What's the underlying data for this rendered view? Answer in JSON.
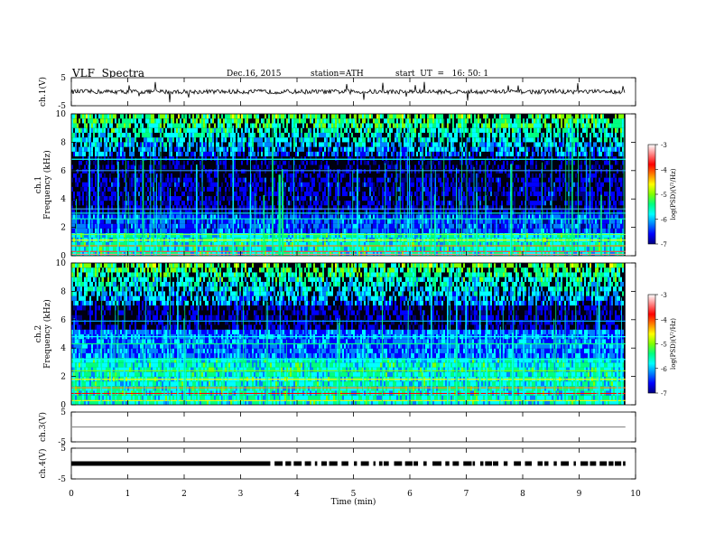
{
  "header": {
    "title": "VLF  Spectra",
    "date": "Dec.16, 2015",
    "station": "station=ATH",
    "start": "start  UT  =   16: 50: 1"
  },
  "colorbar": {
    "label": "log(PSD)(V²/Hz)",
    "ticks": [
      "-3",
      "-4",
      "-5",
      "-6",
      "-7"
    ],
    "colormap": [
      "#000080",
      "#0000ff",
      "#0080ff",
      "#00ffff",
      "#00ff80",
      "#80ff00",
      "#ffff00",
      "#ff8000",
      "#ff0000",
      "#ff8080",
      "#ffffff"
    ]
  },
  "chart_data": [
    {
      "type": "line",
      "ylabel": "ch.1(V)",
      "yticks": [
        "5",
        "-5"
      ],
      "ylim": [
        -5,
        5
      ],
      "baseline": 0,
      "color": "#000000"
    },
    {
      "type": "heatmap",
      "ylabel": "ch.1\nFrequency  (kHz)",
      "yticks": [
        "10",
        "8",
        "6",
        "4",
        "2",
        "0"
      ],
      "ylim": [
        0,
        10
      ]
    },
    {
      "type": "heatmap",
      "ylabel": "ch.2\nFrequency  (kHz)",
      "yticks": [
        "10",
        "8",
        "6",
        "4",
        "2",
        "0"
      ],
      "ylim": [
        0,
        10
      ]
    },
    {
      "type": "line",
      "ylabel": "ch.3(V)",
      "yticks": [
        "5",
        "-5"
      ],
      "ylim": [
        -5,
        5
      ],
      "baseline": 0,
      "color": "#909090"
    },
    {
      "type": "line",
      "ylabel": "ch.4(V)",
      "yticks": [
        "5",
        "-5"
      ],
      "ylim": [
        -5,
        5
      ],
      "baseline": 0,
      "color": "#000000"
    }
  ],
  "xaxis": {
    "label": "Time  (min)",
    "ticks": [
      "0",
      "1",
      "2",
      "3",
      "4",
      "5",
      "6",
      "7",
      "8",
      "9",
      "10"
    ],
    "xlim": [
      0,
      10
    ],
    "data_end": 9.82
  }
}
